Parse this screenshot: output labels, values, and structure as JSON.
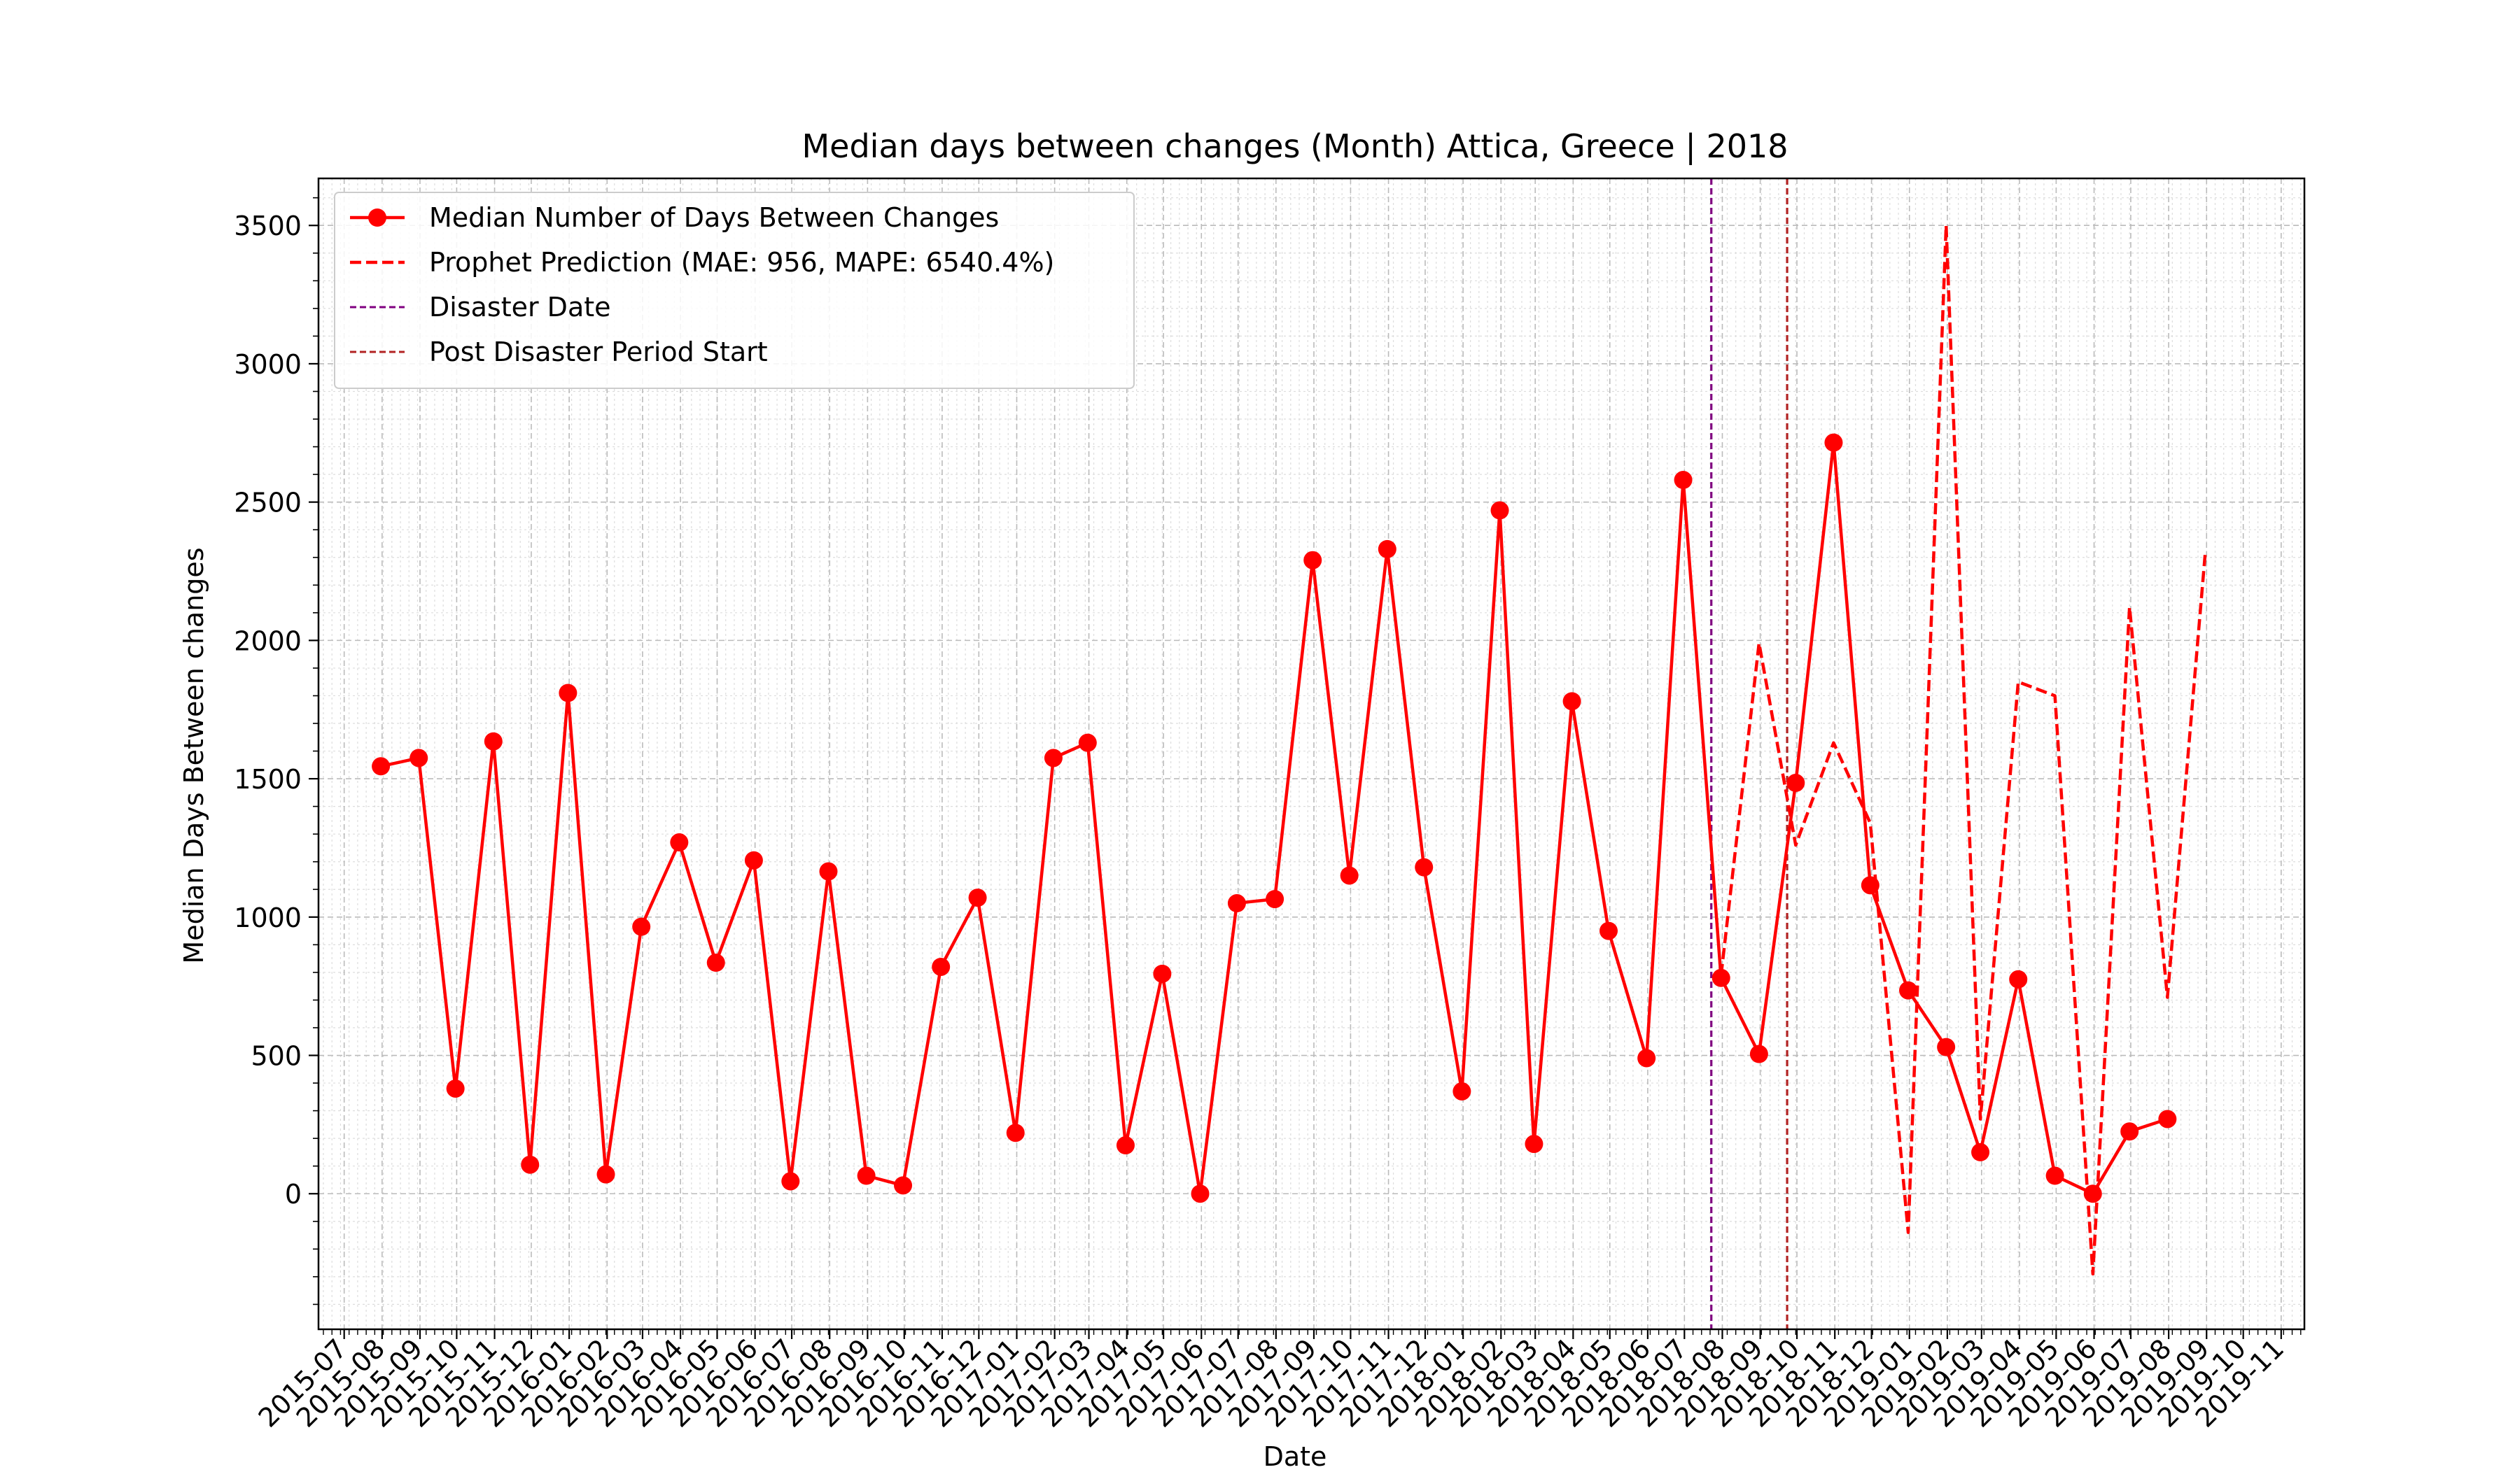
{
  "chart_data": {
    "type": "line",
    "title": "Median days between changes (Month) Attica, Greece | 2018",
    "xlabel": "Date",
    "ylabel": "Median Days Between changes",
    "xlim": [
      "2015-06-10",
      "2019-11-20"
    ],
    "ylim": [
      -490,
      3670
    ],
    "y_ticks": [
      0,
      500,
      1000,
      1500,
      2000,
      2500,
      3000,
      3500
    ],
    "x_ticks": [
      "2015-07",
      "2015-08",
      "2015-09",
      "2015-10",
      "2015-11",
      "2015-12",
      "2016-01",
      "2016-02",
      "2016-03",
      "2016-04",
      "2016-05",
      "2016-06",
      "2016-07",
      "2016-08",
      "2016-09",
      "2016-10",
      "2016-11",
      "2016-12",
      "2017-01",
      "2017-02",
      "2017-03",
      "2017-04",
      "2017-05",
      "2017-06",
      "2017-07",
      "2017-08",
      "2017-09",
      "2017-10",
      "2017-11",
      "2017-12",
      "2018-01",
      "2018-02",
      "2018-03",
      "2018-04",
      "2018-05",
      "2018-06",
      "2018-07",
      "2018-08",
      "2018-09",
      "2018-10",
      "2018-11",
      "2018-12",
      "2019-01",
      "2019-02",
      "2019-03",
      "2019-04",
      "2019-05",
      "2019-06",
      "2019-07",
      "2019-08",
      "2019-09",
      "2019-10",
      "2019-11"
    ],
    "grid": true,
    "legend_position": "upper-left",
    "series": [
      {
        "name": "Median Number of Days Between Changes",
        "color": "#ff0000",
        "style": "solid-with-markers",
        "x": [
          "2015-07-31",
          "2015-08-31",
          "2015-09-30",
          "2015-10-31",
          "2015-11-30",
          "2015-12-31",
          "2016-01-31",
          "2016-02-29",
          "2016-03-31",
          "2016-04-30",
          "2016-05-31",
          "2016-06-30",
          "2016-07-31",
          "2016-08-31",
          "2016-09-30",
          "2016-10-31",
          "2016-11-30",
          "2016-12-31",
          "2017-01-31",
          "2017-02-28",
          "2017-03-31",
          "2017-04-30",
          "2017-05-31",
          "2017-06-30",
          "2017-07-31",
          "2017-08-31",
          "2017-09-30",
          "2017-10-31",
          "2017-11-30",
          "2017-12-31",
          "2018-01-31",
          "2018-02-28",
          "2018-03-31",
          "2018-04-30",
          "2018-05-31",
          "2018-06-30",
          "2018-07-31",
          "2018-08-31",
          "2018-09-30",
          "2018-10-31",
          "2018-11-30",
          "2018-12-31",
          "2019-01-31",
          "2019-02-28",
          "2019-03-31",
          "2019-04-30",
          "2019-05-31",
          "2019-06-30",
          "2019-07-31"
        ],
        "values": [
          1545,
          1575,
          380,
          1635,
          105,
          1810,
          70,
          965,
          1270,
          835,
          1205,
          45,
          1165,
          65,
          30,
          820,
          1070,
          220,
          1575,
          1630,
          175,
          795,
          0,
          1050,
          1065,
          2290,
          1150,
          2330,
          1180,
          370,
          2470,
          180,
          1780,
          950,
          490,
          2580,
          780,
          505,
          1485,
          2715,
          1115,
          735,
          530,
          150,
          775,
          65,
          0,
          225,
          270
        ]
      },
      {
        "name": "Prophet Prediction (MAE: 956, MAPE: 6540.4%)",
        "color": "#ff0000",
        "style": "dashed",
        "x": [
          "2018-07-31",
          "2018-08-31",
          "2018-09-30",
          "2018-10-31",
          "2018-11-30",
          "2018-12-31",
          "2019-01-31",
          "2019-02-28",
          "2019-03-31",
          "2019-04-30",
          "2019-05-31",
          "2019-06-30",
          "2019-07-31",
          "2019-08-31"
        ],
        "values": [
          790,
          1990,
          1260,
          1630,
          1340,
          -140,
          3500,
          270,
          1850,
          1800,
          -290,
          2120,
          710,
          2320
        ]
      }
    ],
    "vlines": [
      {
        "name": "Disaster Date",
        "x": "2018-07-23",
        "color": "#800080",
        "style": "dashed"
      },
      {
        "name": "Post Disaster Period Start",
        "x": "2018-09-23",
        "color": "#b22222",
        "style": "dashed"
      }
    ]
  }
}
